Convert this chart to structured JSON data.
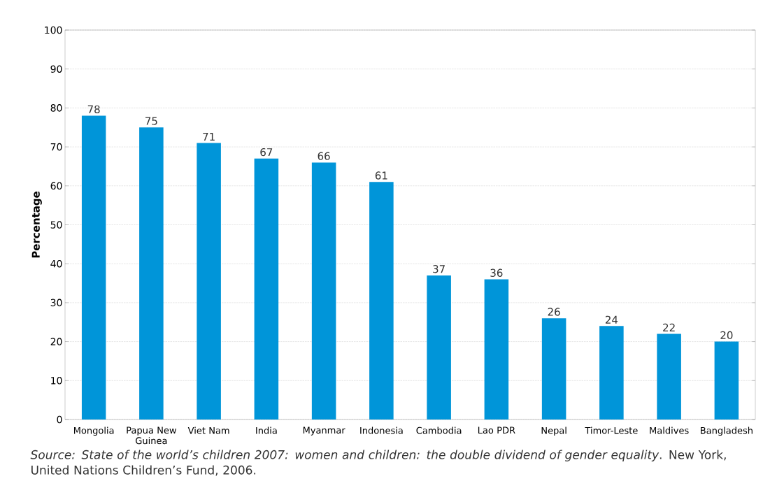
{
  "chart_data": {
    "type": "bar",
    "ylabel": "Percentage",
    "categories": [
      "Mongolia",
      "Papua New Guinea",
      "Viet Nam",
      "India",
      "Myanmar",
      "Indonesia",
      "Cambodia",
      "Lao PDR",
      "Nepal",
      "Timor-Leste",
      "Maldives",
      "Bangladesh"
    ],
    "values": [
      78,
      75,
      71,
      67,
      66,
      61,
      37,
      36,
      26,
      24,
      22,
      20
    ],
    "color": "#0095d9",
    "ylim": [
      0,
      100
    ],
    "yticks": [
      0,
      10,
      20,
      30,
      40,
      50,
      60,
      70,
      80,
      90,
      100
    ],
    "grid": "y",
    "data_labels": true,
    "annotations": [
      "*Source:* *State of the world’s children 2007: women and children: the double dividend of gender equality*. New York, United Nations Children’s Fund, 2006."
    ]
  }
}
